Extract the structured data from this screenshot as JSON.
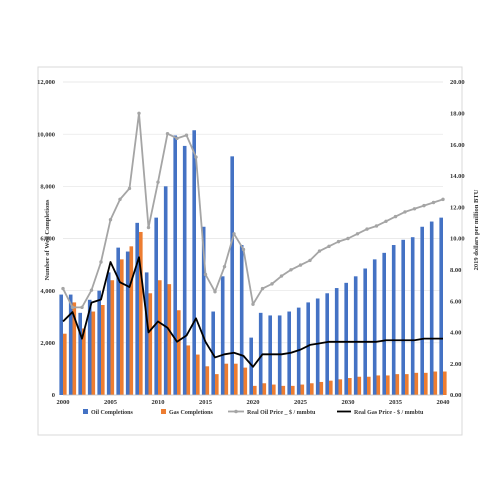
{
  "chart_data": {
    "type": "bar",
    "x": [
      2000,
      2001,
      2002,
      2003,
      2004,
      2005,
      2006,
      2007,
      2008,
      2009,
      2010,
      2011,
      2012,
      2013,
      2014,
      2015,
      2016,
      2017,
      2018,
      2019,
      2020,
      2021,
      2022,
      2023,
      2024,
      2025,
      2026,
      2027,
      2028,
      2029,
      2030,
      2031,
      2032,
      2033,
      2034,
      2035,
      2036,
      2037,
      2038,
      2039,
      2040
    ],
    "x_ticks": [
      "2000",
      "2005",
      "2010",
      "2015",
      "2020",
      "2025",
      "2030",
      "2035",
      "2040"
    ],
    "y_left_ticks": [
      "0",
      "2,000",
      "4,000",
      "6,000",
      "8,000",
      "10,000",
      "12,000"
    ],
    "y_right_ticks": [
      "0.00",
      "2.00",
      "4.00",
      "6.00",
      "8.00",
      "10.00",
      "12.00",
      "14.00",
      "16.00",
      "18.00",
      "20.00"
    ],
    "ylim_left": [
      0,
      12000
    ],
    "ylim_right": [
      0,
      20
    ],
    "ylabel_left": "Number of Well Completions",
    "ylabel_right": "2019 dollars per million BTU",
    "grid": true,
    "legend_position": "bottom",
    "series": [
      {
        "name": "Oil Completions",
        "kind": "bar",
        "axis": "left",
        "color": "#4472C4",
        "values": [
          3850,
          3850,
          3150,
          3650,
          4000,
          4700,
          5650,
          5500,
          6600,
          4700,
          6800,
          8000,
          9950,
          9550,
          10150,
          6450,
          3200,
          4550,
          9150,
          5750,
          2200,
          3150,
          3050,
          3050,
          3200,
          3350,
          3550,
          3700,
          3900,
          4100,
          4300,
          4550,
          4850,
          5200,
          5450,
          5750,
          5950,
          6050,
          6450,
          6650,
          6800
        ]
      },
      {
        "name": "Gas Completions",
        "kind": "bar",
        "axis": "left",
        "color": "#ED7D31",
        "values": [
          2350,
          3550,
          2550,
          3200,
          3450,
          4400,
          5200,
          5700,
          6250,
          3900,
          4400,
          4250,
          3250,
          1900,
          1550,
          1100,
          800,
          1200,
          1200,
          1050,
          350,
          450,
          400,
          350,
          350,
          400,
          450,
          500,
          550,
          600,
          650,
          700,
          700,
          750,
          750,
          800,
          800,
          850,
          850,
          900,
          900
        ]
      },
      {
        "name": "Real Oil Price _ $ / mmbtu",
        "kind": "line",
        "axis": "right",
        "color": "#A5A5A5",
        "values": [
          6.8,
          5.6,
          5.6,
          6.7,
          8.5,
          11.2,
          12.5,
          13.2,
          18.0,
          10.7,
          13.6,
          16.7,
          16.4,
          16.6,
          15.2,
          7.7,
          6.6,
          8.2,
          10.3,
          9.3,
          5.8,
          6.8,
          7.1,
          7.6,
          8.0,
          8.3,
          8.6,
          9.2,
          9.5,
          9.8,
          10.0,
          10.3,
          10.6,
          10.8,
          11.1,
          11.4,
          11.7,
          11.9,
          12.1,
          12.3,
          12.5
        ]
      },
      {
        "name": "Real Gas Price - $ / mmbtu",
        "kind": "line",
        "axis": "right",
        "color": "#000000",
        "values": [
          4.7,
          5.3,
          3.6,
          5.9,
          6.1,
          8.5,
          7.2,
          6.9,
          8.8,
          4.0,
          4.7,
          4.3,
          3.4,
          3.8,
          4.9,
          3.4,
          2.4,
          2.6,
          2.7,
          2.5,
          1.8,
          2.6,
          2.6,
          2.6,
          2.7,
          2.9,
          3.2,
          3.3,
          3.4,
          3.4,
          3.4,
          3.4,
          3.4,
          3.4,
          3.5,
          3.5,
          3.5,
          3.5,
          3.6,
          3.6,
          3.6
        ]
      }
    ]
  }
}
